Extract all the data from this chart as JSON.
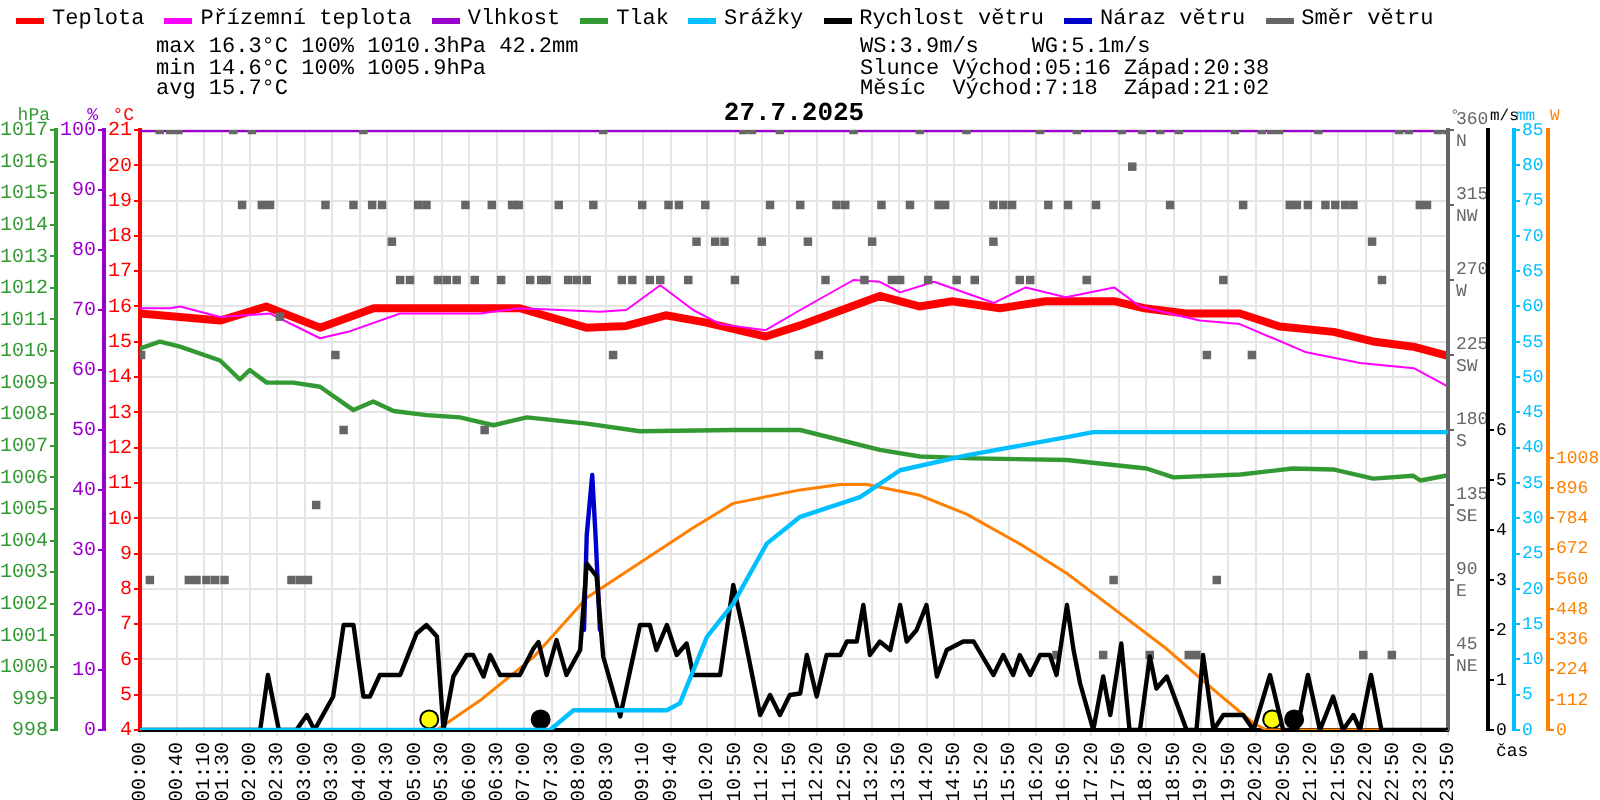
{
  "chart_data": [
    {
      "type": "line",
      "title": "27.7.2025",
      "xlabel": "čas",
      "ylabel": "°C",
      "y2label": "hPa",
      "y3label": "%",
      "legend": "top left",
      "grid": true,
      "marker": "none",
      "annotations": [
        "max 16.3°C 100% 1010.3hPa 42.2mm",
        "min 14.6°C 100% 1005.9hPa",
        "avg 15.7°C",
        "WS:3.9m/s    WG:5.1m/s",
        "Slunce Východ:05:16 Západ:20:38",
        "Měsíc  Východ:7:18  Západ:21:02"
      ],
      "xlim": [
        0,
        23.833
      ],
      "xticks": [
        {
          "value": 0,
          "label": "00:00"
        },
        {
          "value": 0.667,
          "label": "00:40"
        },
        {
          "value": 1.167,
          "label": "01:10"
        },
        {
          "value": 1.5,
          "label": "01:30"
        },
        {
          "value": 2,
          "label": "02:00"
        },
        {
          "value": 2.5,
          "label": "02:30"
        },
        {
          "value": 3,
          "label": "03:00"
        },
        {
          "value": 3.5,
          "label": "03:30"
        },
        {
          "value": 4,
          "label": "04:00"
        },
        {
          "value": 4.5,
          "label": "04:30"
        },
        {
          "value": 5,
          "label": "05:00"
        },
        {
          "value": 5.5,
          "label": "05:30"
        },
        {
          "value": 6,
          "label": "06:00"
        },
        {
          "value": 6.5,
          "label": "06:30"
        },
        {
          "value": 7,
          "label": "07:00"
        },
        {
          "value": 7.5,
          "label": "07:30"
        },
        {
          "value": 8,
          "label": "08:00"
        },
        {
          "value": 8.5,
          "label": "08:30"
        },
        {
          "value": 9.167,
          "label": "09:10"
        },
        {
          "value": 9.667,
          "label": "09:40"
        },
        {
          "value": 10.333,
          "label": "10:20"
        },
        {
          "value": 10.833,
          "label": "10:50"
        },
        {
          "value": 11.333,
          "label": "11:20"
        },
        {
          "value": 11.833,
          "label": "11:50"
        },
        {
          "value": 12.333,
          "label": "12:20"
        },
        {
          "value": 12.833,
          "label": "12:50"
        },
        {
          "value": 13.333,
          "label": "13:20"
        },
        {
          "value": 13.833,
          "label": "13:50"
        },
        {
          "value": 14.333,
          "label": "14:20"
        },
        {
          "value": 14.833,
          "label": "14:50"
        },
        {
          "value": 15.333,
          "label": "15:20"
        },
        {
          "value": 15.833,
          "label": "15:50"
        },
        {
          "value": 16.333,
          "label": "16:20"
        },
        {
          "value": 16.833,
          "label": "16:50"
        },
        {
          "value": 17.333,
          "label": "17:20"
        },
        {
          "value": 17.833,
          "label": "17:50"
        },
        {
          "value": 18.333,
          "label": "18:20"
        },
        {
          "value": 18.833,
          "label": "18:50"
        },
        {
          "value": 19.333,
          "label": "19:20"
        },
        {
          "value": 19.833,
          "label": "19:50"
        },
        {
          "value": 20.333,
          "label": "20:20"
        },
        {
          "value": 20.833,
          "label": "20:50"
        },
        {
          "value": 21.333,
          "label": "21:20"
        },
        {
          "value": 21.833,
          "label": "21:50"
        },
        {
          "value": 22.333,
          "label": "22:20"
        },
        {
          "value": 22.833,
          "label": "22:50"
        },
        {
          "value": 23.333,
          "label": "23:20"
        },
        {
          "value": 23.833,
          "label": "23:50"
        }
      ],
      "ylim": [
        4,
        21
      ],
      "yticks": [
        4,
        5,
        6,
        7,
        8,
        9,
        10,
        11,
        12,
        13,
        14,
        15,
        16,
        17,
        18,
        19,
        20,
        21
      ],
      "y2lim": [
        998,
        1017
      ],
      "y2ticks": [
        998,
        999,
        1000,
        1001,
        1002,
        1003,
        1004,
        1005,
        1006,
        1007,
        1008,
        1009,
        1010,
        1011,
        1012,
        1013,
        1014,
        1015,
        1016,
        1017
      ],
      "y3lim": [
        0,
        100
      ],
      "y3ticks": [
        0,
        10,
        20,
        30,
        40,
        50,
        60,
        70,
        80,
        90,
        100
      ],
      "series": [
        {
          "name": "Teplota",
          "color": "#ff0000",
          "x": [
            0,
            1.09,
            1.46,
            2.3,
            3.28,
            4.26,
            6.92,
            8.13,
            8.86,
            9.58,
            10.3,
            11.4,
            12.0,
            13.48,
            14.2,
            14.8,
            15.67,
            16.5,
            17.75,
            18.3,
            19.06,
            20.04,
            20.77,
            21.75,
            22.5,
            23.2,
            23.83
          ],
          "values": [
            15.8,
            15.65,
            15.6,
            16.0,
            15.4,
            15.95,
            15.95,
            15.4,
            15.45,
            15.75,
            15.55,
            15.15,
            15.45,
            16.3,
            16.0,
            16.15,
            15.95,
            16.15,
            16.15,
            15.95,
            15.8,
            15.8,
            15.43,
            15.28,
            15.0,
            14.86,
            14.6
          ]
        },
        {
          "name": "Přízemní teplota",
          "color": "#ff00ff",
          "x": [
            0,
            0.55,
            0.73,
            1.46,
            2.37,
            3.28,
            3.83,
            4.74,
            6.2,
            6.92,
            8.38,
            8.86,
            9.48,
            10.08,
            10.57,
            11.4,
            12.03,
            13.0,
            13.48,
            13.85,
            14.47,
            15.56,
            16.14,
            16.87,
            17.75,
            18.22,
            19.31,
            20.04,
            21.25,
            22.23,
            23.21,
            23.8
          ],
          "values": [
            15.95,
            15.95,
            16.0,
            15.7,
            15.8,
            15.1,
            15.3,
            15.8,
            15.8,
            15.95,
            15.85,
            15.9,
            16.6,
            15.9,
            15.5,
            15.33,
            15.9,
            16.75,
            16.7,
            16.4,
            16.7,
            16.1,
            16.54,
            16.26,
            16.54,
            16.0,
            15.6,
            15.5,
            14.7,
            14.4,
            14.25,
            13.76
          ]
        },
        {
          "name": "Vlhkost",
          "axis": "y3",
          "color": "#9900cc",
          "x": [
            0,
            23.833
          ],
          "values": [
            100,
            100
          ]
        },
        {
          "name": "Tlak",
          "axis": "y2",
          "color": "#339933",
          "x": [
            0,
            0.36,
            0.73,
            1.46,
            1.82,
            2.0,
            2.31,
            2.79,
            3.28,
            3.89,
            4.25,
            4.62,
            5.22,
            5.83,
            6.44,
            7.05,
            8.14,
            9.11,
            10.81,
            12.03,
            13.48,
            14.21,
            15.19,
            16.89,
            18.34,
            18.83,
            20.05,
            21.0,
            21.74,
            22.47,
            23.2,
            23.33,
            23.81
          ],
          "values": [
            1010.08,
            1010.3,
            1010.14,
            1009.7,
            1009.1,
            1009.4,
            1009.0,
            1009.0,
            1008.87,
            1008.13,
            1008.4,
            1008.1,
            1007.97,
            1007.9,
            1007.65,
            1007.9,
            1007.7,
            1007.46,
            1007.5,
            1007.5,
            1006.87,
            1006.66,
            1006.6,
            1006.55,
            1006.28,
            1006.0,
            1006.09,
            1006.28,
            1006.25,
            1005.96,
            1006.05,
            1005.9,
            1006.06
          ]
        },
        {
          "type": "scatter",
          "color": "#ffff00",
          "marker": "circle",
          "x": [
            5.27,
            20.63
          ],
          "values": [
            4.3,
            4.3
          ]
        },
        {
          "type": "scatter",
          "color": "#000000",
          "marker": "circle",
          "x": [
            7.3,
            21.03
          ],
          "values": [
            4.3,
            4.3
          ]
        }
      ]
    },
    {
      "type": "line",
      "ylabel": "°",
      "y2label": "m/s",
      "y3label": "mm",
      "legend": "top right",
      "marker": "none",
      "tick_labels": "y",
      "xlim": [
        0,
        23.833
      ],
      "ylim": [
        0,
        360
      ],
      "yticks": [
        {
          "value": 45,
          "label": "45\nNE"
        },
        {
          "value": 90,
          "label": "90\nE"
        },
        {
          "value": 135,
          "label": "135\nSE"
        },
        {
          "value": 180,
          "label": "180\nS"
        },
        {
          "value": 225,
          "label": "225\nSW"
        },
        {
          "value": 270,
          "label": "270\nW"
        },
        {
          "value": 315,
          "label": "315\nNW"
        },
        {
          "value": 360,
          "label": "360\nN"
        }
      ],
      "y2lim": [
        0,
        12
      ],
      "y2ticks": [
        0,
        1,
        2,
        3,
        4,
        5,
        6
      ],
      "y3lim": [
        0,
        85
      ],
      "y3ticks": [
        0,
        5,
        10,
        15,
        20,
        25,
        30,
        35,
        40,
        45,
        50,
        55,
        60,
        65,
        70,
        75,
        80,
        85
      ],
      "series": [
        {
          "name": "Srážky",
          "axis": "y3",
          "color": "#00bfff",
          "x": [
            0,
            7.47,
            7.9,
            9.6,
            9.84,
            10.33,
            10.81,
            11.42,
            12.03,
            13.12,
            13.85,
            15.06,
            16.89,
            17.37,
            23.83
          ],
          "values": [
            0,
            0,
            2.8,
            2.8,
            3.8,
            13.2,
            17.9,
            26.4,
            30.2,
            33.0,
            36.8,
            38.9,
            41.5,
            42.2,
            42.2
          ]
        },
        {
          "name": "Rychlost větru",
          "axis": "y2",
          "color": "#000000",
          "x": [
            0,
            2.19,
            2.33,
            2.53,
            2.85,
            3.04,
            3.18,
            3.52,
            3.71,
            3.89,
            4.07,
            4.19,
            4.37,
            4.74,
            5.04,
            5.22,
            5.41,
            5.53,
            5.71,
            5.95,
            6.07,
            6.26,
            6.38,
            6.56,
            6.92,
            7.17,
            7.26,
            7.41,
            7.59,
            7.77,
            8.02,
            8.14,
            8.32,
            8.44,
            8.75,
            9.11,
            9.29,
            9.41,
            9.6,
            9.78,
            9.96,
            10.08,
            10.57,
            10.81,
            10.99,
            11.3,
            11.48,
            11.66,
            11.84,
            12.03,
            12.15,
            12.33,
            12.51,
            12.76,
            12.88,
            13.06,
            13.18,
            13.3,
            13.48,
            13.67,
            13.85,
            13.97,
            14.15,
            14.33,
            14.52,
            14.7,
            15.0,
            15.19,
            15.55,
            15.73,
            15.91,
            16.03,
            16.22,
            16.4,
            16.58,
            16.7,
            16.89,
            17.01,
            17.13,
            17.37,
            17.55,
            17.68,
            17.88,
            18.03,
            18.22,
            18.4,
            18.52,
            18.71,
            19.07,
            19.25,
            19.37,
            19.56,
            19.74,
            20.1,
            20.29,
            20.59,
            20.83,
            21.08,
            21.28,
            21.5,
            21.74,
            21.92,
            22.11,
            22.23,
            22.43,
            22.62,
            23.83
          ],
          "values": [
            0,
            0,
            1.1,
            0,
            0,
            0.3,
            0,
            0.67,
            2.1,
            2.1,
            0.67,
            0.67,
            1.1,
            1.1,
            1.93,
            2.1,
            1.87,
            0,
            1.07,
            1.5,
            1.5,
            1.07,
            1.5,
            1.1,
            1.1,
            1.63,
            1.76,
            1.1,
            1.8,
            1.1,
            1.6,
            3.33,
            3.07,
            1.47,
            0.27,
            2.1,
            2.1,
            1.6,
            2.1,
            1.5,
            1.73,
            1.1,
            1.1,
            2.9,
            2.0,
            0.3,
            0.7,
            0.3,
            0.7,
            0.73,
            1.5,
            0.67,
            1.5,
            1.5,
            1.77,
            1.77,
            2.5,
            1.5,
            1.77,
            1.6,
            2.5,
            1.77,
            2.0,
            2.5,
            1.07,
            1.6,
            1.77,
            1.77,
            1.1,
            1.5,
            1.1,
            1.5,
            1.1,
            1.5,
            1.5,
            1.1,
            2.5,
            1.6,
            0.93,
            0,
            1.07,
            0.3,
            1.73,
            0,
            0,
            1.47,
            0.83,
            1.07,
            0,
            0,
            1.5,
            0,
            0.3,
            0.3,
            0,
            1.1,
            0,
            0,
            1.1,
            0,
            0.67,
            0,
            0.3,
            0,
            1.1,
            0,
            0
          ]
        },
        {
          "name": "Náraz větru",
          "axis": "y2",
          "color": "#0000cc",
          "x": [
            8.09,
            8.14,
            8.24,
            8.3,
            8.38
          ],
          "values": [
            2.0,
            3.9,
            5.1,
            3.9,
            2.0
          ]
        },
        {
          "name": "Směr větru",
          "type": "scatter",
          "color": "#666666",
          "marker": "square",
          "x": [
            0.36,
            0.55,
            0.7,
            1.7,
            2.04,
            4.07,
            8.44,
            10.99,
            11.15,
            11.66,
            13.0,
            14.21,
            15.06,
            16.4,
            17.07,
            17.89,
            18.26,
            18.59,
            18.93,
            19.95,
            20.44,
            20.61,
            20.75,
            21.47,
            22.94,
            23.12,
            23.65,
            23.81,
            18.08,
            1.86,
            2.22,
            2.37,
            3.38,
            3.89,
            4.23,
            4.41,
            5.07,
            5.22,
            5.93,
            6.41,
            6.78,
            6.9,
            7.63,
            8.26,
            9.15,
            9.63,
            9.82,
            10.3,
            11.48,
            12.03,
            12.69,
            12.85,
            13.51,
            14.03,
            14.55,
            14.67,
            15.55,
            15.73,
            15.89,
            16.55,
            16.91,
            17.42,
            18.77,
            20.1,
            20.95,
            21.08,
            21.28,
            21.6,
            21.78,
            21.96,
            22.11,
            23.32,
            23.45,
            4.59,
            10.14,
            10.48,
            10.65,
            11.33,
            12.17,
            13.34,
            15.55,
            22.45,
            4.74,
            4.92,
            5.43,
            5.59,
            5.77,
            6.1,
            6.58,
            7.11,
            7.31,
            7.41,
            7.8,
            7.96,
            8.14,
            8.78,
            8.97,
            9.29,
            9.48,
            9.99,
            10.84,
            12.49,
            13.2,
            13.7,
            13.85,
            14.36,
            14.88,
            15.21,
            16.03,
            16.22,
            17.25,
            19.74,
            22.63,
            2.55,
            0.02,
            3.56,
            8.62,
            12.37,
            19.44,
            20.26,
            3.71,
            6.28,
            3.21,
            0.18,
            0.89,
            1.03,
            1.21,
            1.37,
            1.54,
            2.76,
            2.92,
            3.06,
            17.74,
            19.62,
            16.7,
            17.55,
            18.4,
            19.11,
            19.25,
            22.29,
            22.81
          ],
          "values": [
            360,
            360,
            360,
            360,
            360,
            360,
            360,
            360,
            360,
            360,
            360,
            360,
            360,
            360,
            360,
            360,
            360,
            360,
            360,
            360,
            360,
            360,
            360,
            360,
            360,
            360,
            360,
            360,
            338,
            315,
            315,
            315,
            315,
            315,
            315,
            315,
            315,
            315,
            315,
            315,
            315,
            315,
            315,
            315,
            315,
            315,
            315,
            315,
            315,
            315,
            315,
            315,
            315,
            315,
            315,
            315,
            315,
            315,
            315,
            315,
            315,
            315,
            315,
            315,
            315,
            315,
            315,
            315,
            315,
            315,
            315,
            315,
            315,
            293,
            293,
            293,
            293,
            293,
            293,
            293,
            293,
            293,
            270,
            270,
            270,
            270,
            270,
            270,
            270,
            270,
            270,
            270,
            270,
            270,
            270,
            270,
            270,
            270,
            270,
            270,
            270,
            270,
            270,
            270,
            270,
            270,
            270,
            270,
            270,
            270,
            270,
            270,
            270,
            248,
            225,
            225,
            225,
            225,
            225,
            225,
            180,
            180,
            135,
            90,
            90,
            90,
            90,
            90,
            90,
            90,
            90,
            90,
            90,
            90,
            45,
            45,
            45,
            45,
            45,
            45,
            45
          ]
        }
      ]
    },
    {
      "type": "line",
      "ylabel": "W",
      "marker": "none",
      "tick_labels": "y",
      "xlim": [
        0,
        23.833
      ],
      "ylim": [
        0,
        2224
      ],
      "yticks": [
        0,
        112,
        224,
        336,
        448,
        560,
        672,
        784,
        896,
        1008
      ],
      "series": [
        {
          "color": "#ff8000",
          "x": [
            5.41,
            6.2,
            7.17,
            8.14,
            9.11,
            10.08,
            10.81,
            12.03,
            12.76,
            13.24,
            14.21,
            15.06,
            16.03,
            16.89,
            17.74,
            18.71,
            19.56,
            20.29,
            20.53,
            22.6
          ],
          "values": [
            0,
            110,
            270,
            490,
            620,
            750,
            840,
            890,
            910,
            910,
            870,
            800,
            690,
            580,
            450,
            300,
            150,
            25,
            0,
            0
          ]
        }
      ]
    }
  ]
}
